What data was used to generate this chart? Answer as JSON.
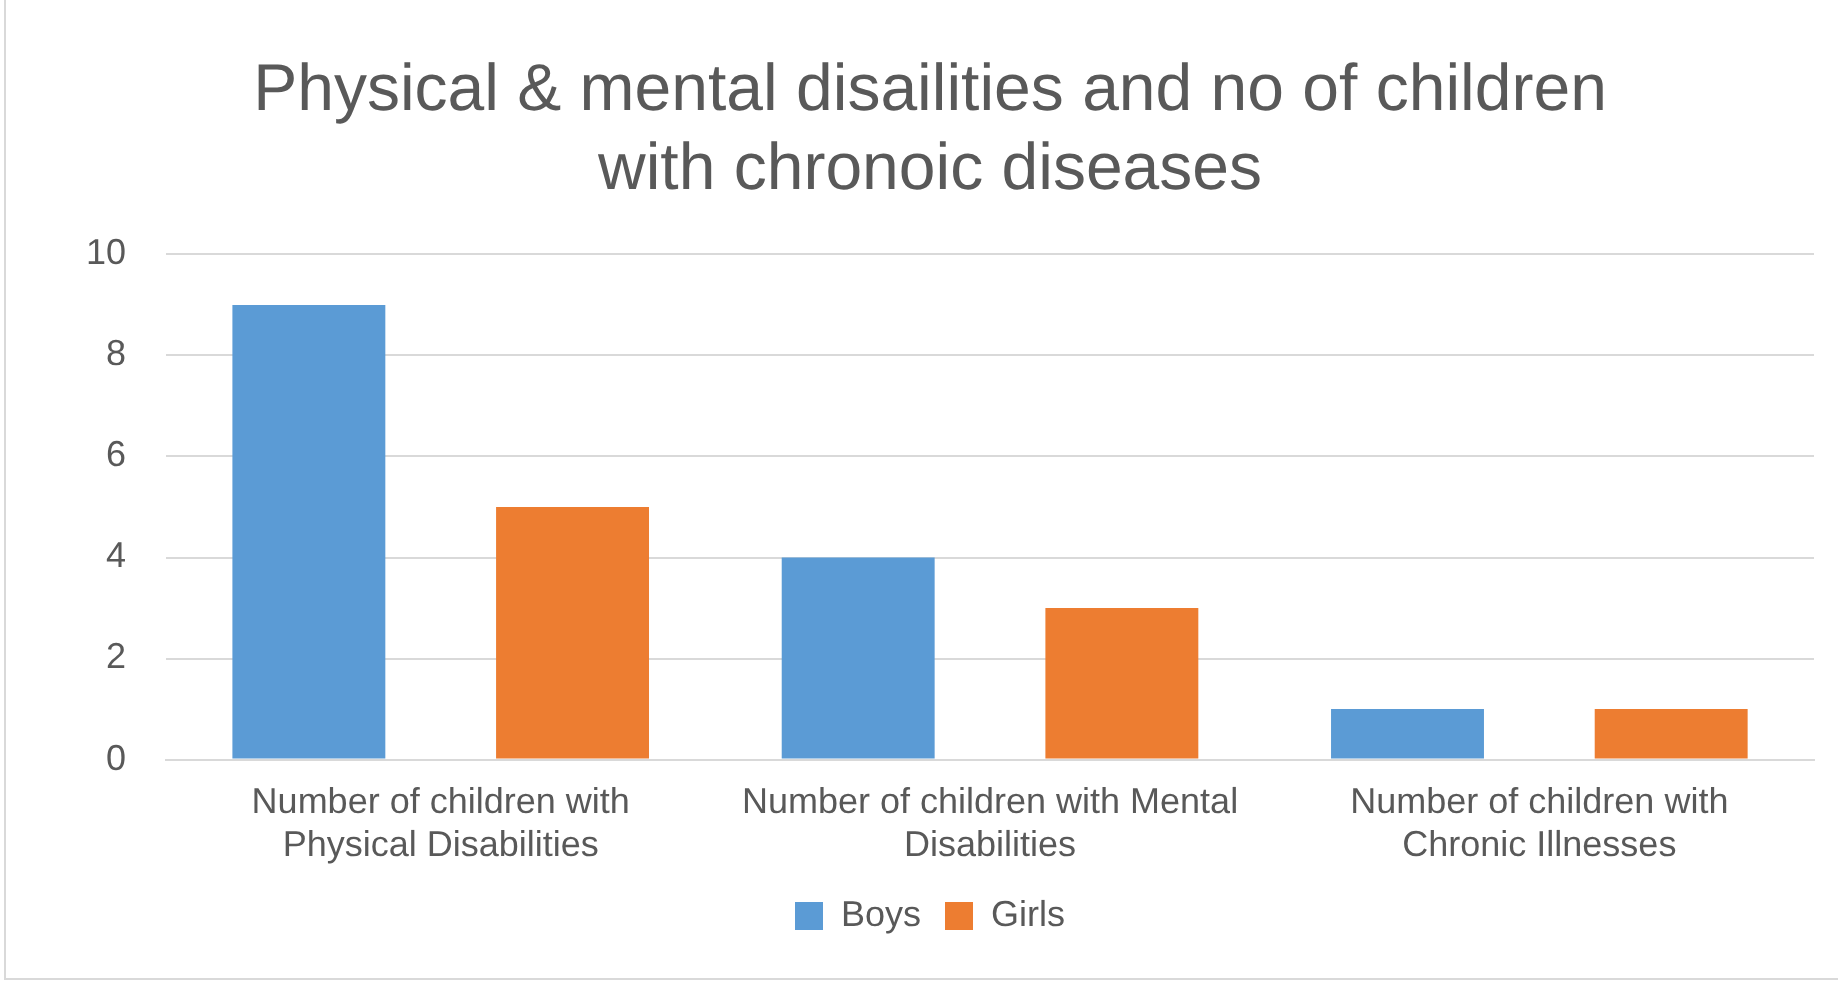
{
  "chart_data": {
    "type": "bar",
    "title": "Physical & mental disailities and no of children with chronoic diseases",
    "categories": [
      "Number of children with Physical Disabilities",
      "Number of children with Mental Disabilities",
      "Number of children with Chronic Illnesses"
    ],
    "series": [
      {
        "name": "Boys",
        "color": "#5b9bd5",
        "values": [
          9,
          4,
          1
        ]
      },
      {
        "name": "Girls",
        "color": "#ed7d31",
        "values": [
          5,
          3,
          1
        ]
      }
    ],
    "ylim": [
      0,
      10
    ],
    "yticks": [
      0,
      2,
      4,
      6,
      8,
      10
    ],
    "grid": "y",
    "legend": "bottom"
  }
}
